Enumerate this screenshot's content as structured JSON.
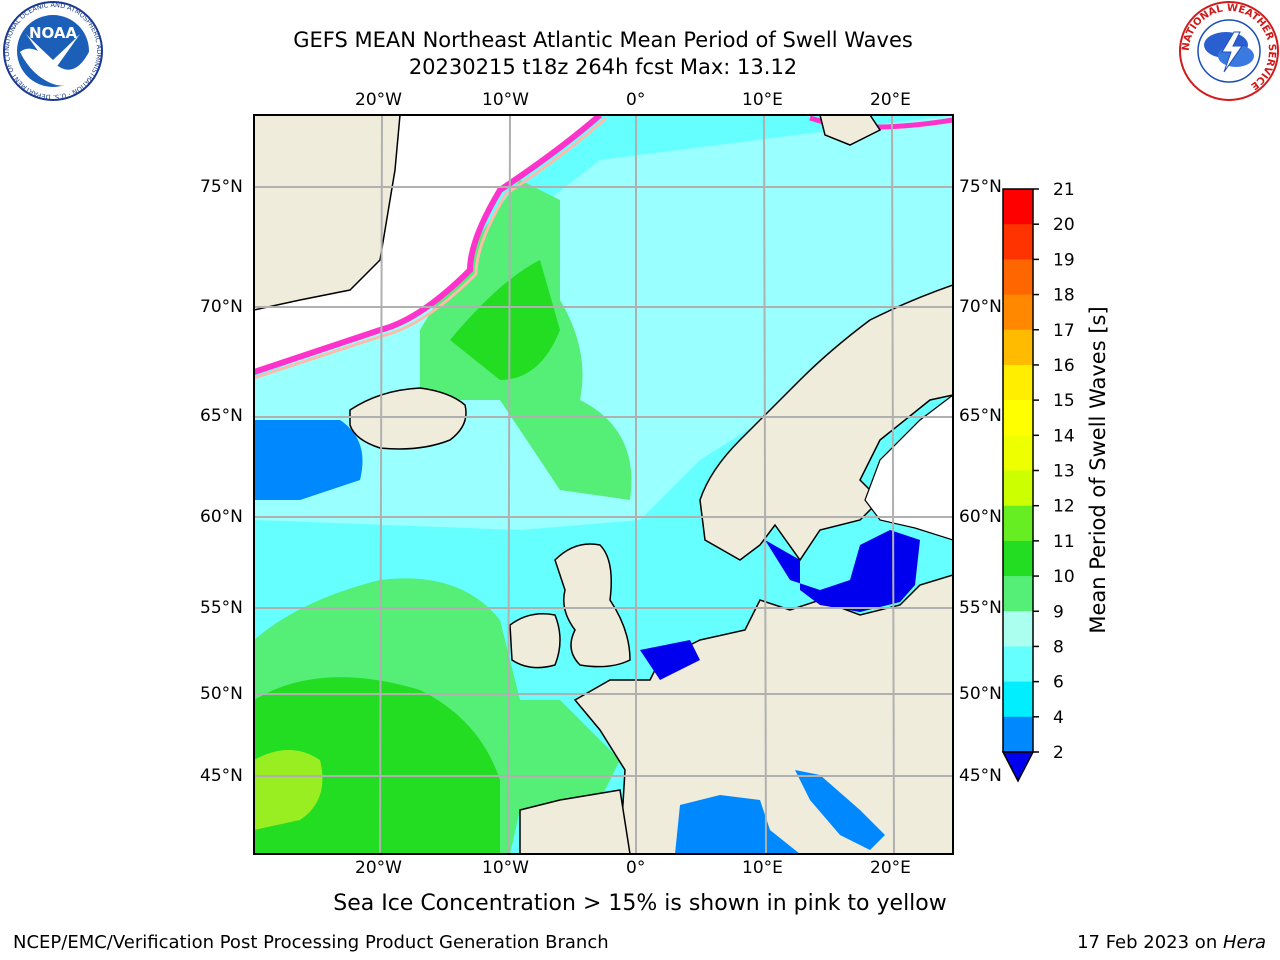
{
  "title_line1": "GEFS MEAN Northeast Atlantic Mean Period of Swell Waves",
  "title_line2": "20230215 t18z 264h fcst   Max: 13.12",
  "logos": {
    "noaa_text": "NOAA",
    "noaa_ring": "NATIONAL OCEANIC AND ATMOSPHERIC ADMINISTRATION · U.S. DEPARTMENT OF COMMERCE",
    "nws_ring": "NATIONAL WEATHER SERVICE"
  },
  "map": {
    "lon_labels": [
      "20°W",
      "10°W",
      "0°",
      "10°E",
      "20°E"
    ],
    "lat_labels": [
      "75°N",
      "70°N",
      "65°N",
      "60°N",
      "55°N",
      "50°N",
      "45°N"
    ],
    "land_color": "#efecdc",
    "ice_colors": [
      "#ff33cc",
      "#ff99aa",
      "#ffcc33"
    ]
  },
  "colorbar": {
    "label": "Mean Period of Swell Waves [s]",
    "ticks": [
      "21",
      "20",
      "19",
      "18",
      "17",
      "16",
      "15",
      "14",
      "13",
      "12",
      "11",
      "10",
      "9",
      "8",
      "6",
      "4",
      "2"
    ],
    "colors": [
      "#ff0000",
      "#ff3300",
      "#ff6600",
      "#ff8800",
      "#ffbb00",
      "#ffee00",
      "#ffff00",
      "#eeff00",
      "#ccff00",
      "#66ee22",
      "#22dd22",
      "#55ee77",
      "#aaffee",
      "#66ffff",
      "#00eeff",
      "#0088ff",
      "#0000ee"
    ]
  },
  "note": "Sea Ice Concentration > 15% is shown in pink to yellow",
  "footer_left": "NCEP/EMC/Verification Post Processing Product Generation Branch",
  "footer_date": "17 Feb 2023 on ",
  "footer_host": "Hera"
}
